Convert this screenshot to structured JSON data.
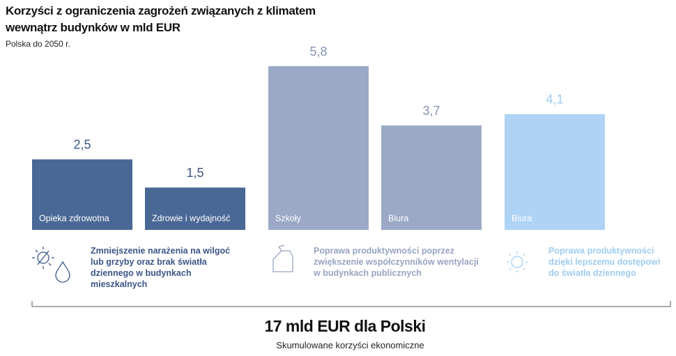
{
  "chart_data": {
    "type": "bar",
    "title": "Korzyści z ograniczenia zagrożeń związanych z klimatem wewnątrz budynków w mld EUR",
    "subtitle": "Polska do 2050 r.",
    "categories": [
      "Opieka zdrowotna",
      "Zdrowie i wydajność",
      "Szkoły",
      "Biura",
      "Biura"
    ],
    "values": [
      2.5,
      1.5,
      5.8,
      3.7,
      4.1
    ],
    "value_labels": [
      "2,5",
      "1,5",
      "5,8",
      "3,7",
      "4,1"
    ],
    "colors": [
      "#4a6896",
      "#4a6896",
      "#9ba9c7",
      "#9ba9c7",
      "#aed3f5"
    ],
    "groups": [
      {
        "text": "Zmniejszenie narażenia na wilgoć lub grzyby oraz brak światła dziennego w budynkach mieszkalnych",
        "color": "#3b5586"
      },
      {
        "text": "Poprawa produktywności poprzez zwiększenie współczynników wentylacji w budynkach publicznych",
        "color": "#97a4c2"
      },
      {
        "text": "Poprawa produktywności dzięki lepszemu dostępowi do światła dziennego",
        "color": "#9fccf1"
      }
    ],
    "total": "17 mld EUR dla Polski",
    "total_note": "Skumulowane korzyści ekonomiczne"
  }
}
